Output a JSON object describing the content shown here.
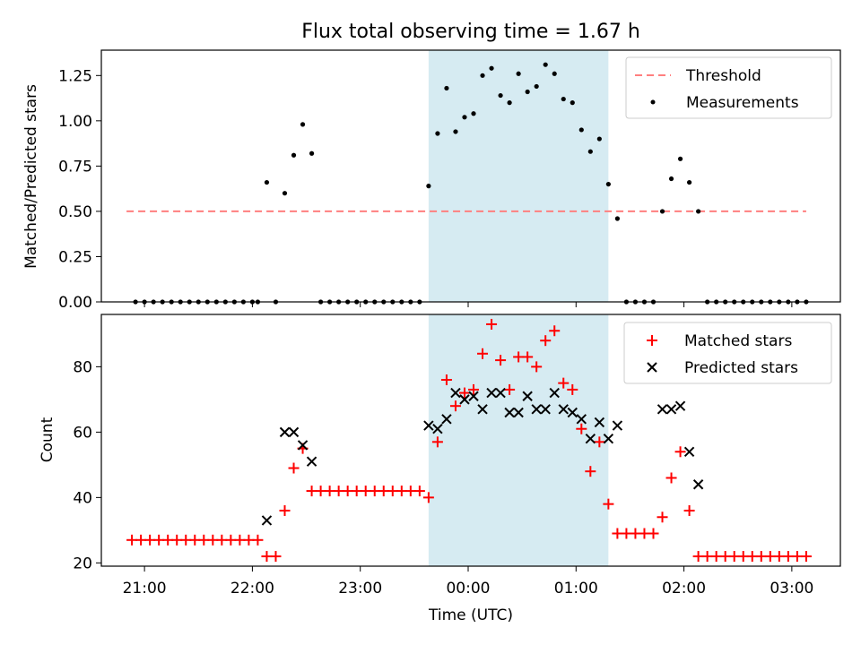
{
  "title": "Flux total observing time = 1.67 h",
  "colors": {
    "threshold": "#ff7f7f",
    "measurement": "#000000",
    "matched": "#ff0000",
    "predicted": "#000000",
    "shade": "#add8e6"
  },
  "chart_data": [
    {
      "type": "scatter",
      "panel": "top",
      "ylabel": "Matched/Predicted stars",
      "ylim": [
        0,
        1.39
      ],
      "yticks": [
        0,
        0.25,
        0.5,
        0.75,
        1.0,
        1.25
      ],
      "ytick_labels": [
        "0.00",
        "0.25",
        "0.50",
        "0.75",
        "1.00",
        "1.25"
      ],
      "legend_position": "top-right",
      "shaded_region": [
        "23:38",
        "01:18"
      ],
      "threshold": {
        "name": "Threshold",
        "value": 0.5,
        "x_range": [
          "20:50",
          "03:08"
        ]
      },
      "series": [
        {
          "name": "Measurements",
          "marker": "dot",
          "points": [
            [
              "20:55",
              0
            ],
            [
              "21:00",
              0
            ],
            [
              "21:05",
              0
            ],
            [
              "21:10",
              0
            ],
            [
              "21:15",
              0
            ],
            [
              "21:20",
              0
            ],
            [
              "21:25",
              0
            ],
            [
              "21:30",
              0
            ],
            [
              "21:35",
              0
            ],
            [
              "21:40",
              0
            ],
            [
              "21:45",
              0
            ],
            [
              "21:50",
              0
            ],
            [
              "21:55",
              0
            ],
            [
              "22:00",
              0
            ],
            [
              "22:03",
              0
            ],
            [
              "22:08",
              0.66
            ],
            [
              "22:13",
              0
            ],
            [
              "22:18",
              0.6
            ],
            [
              "22:23",
              0.81
            ],
            [
              "22:28",
              0.98
            ],
            [
              "22:33",
              0.82
            ],
            [
              "22:38",
              0
            ],
            [
              "22:43",
              0
            ],
            [
              "22:48",
              0
            ],
            [
              "22:53",
              0
            ],
            [
              "22:58",
              0
            ],
            [
              "23:03",
              0
            ],
            [
              "23:08",
              0
            ],
            [
              "23:13",
              0
            ],
            [
              "23:18",
              0
            ],
            [
              "23:23",
              0
            ],
            [
              "23:28",
              0
            ],
            [
              "23:33",
              0
            ],
            [
              "23:38",
              0.64
            ],
            [
              "23:43",
              0.93
            ],
            [
              "23:48",
              1.18
            ],
            [
              "23:53",
              0.94
            ],
            [
              "23:58",
              1.02
            ],
            [
              "00:03",
              1.04
            ],
            [
              "00:08",
              1.25
            ],
            [
              "00:13",
              1.29
            ],
            [
              "00:18",
              1.14
            ],
            [
              "00:23",
              1.1
            ],
            [
              "00:28",
              1.26
            ],
            [
              "00:33",
              1.16
            ],
            [
              "00:38",
              1.19
            ],
            [
              "00:43",
              1.31
            ],
            [
              "00:48",
              1.26
            ],
            [
              "00:53",
              1.12
            ],
            [
              "00:58",
              1.1
            ],
            [
              "01:03",
              0.95
            ],
            [
              "01:08",
              0.83
            ],
            [
              "01:13",
              0.9
            ],
            [
              "01:18",
              0.65
            ],
            [
              "01:23",
              0.46
            ],
            [
              "01:28",
              0
            ],
            [
              "01:33",
              0
            ],
            [
              "01:38",
              0
            ],
            [
              "01:43",
              0
            ],
            [
              "01:48",
              0.5
            ],
            [
              "01:53",
              0.68
            ],
            [
              "01:58",
              0.79
            ],
            [
              "02:03",
              0.66
            ],
            [
              "02:08",
              0.5
            ],
            [
              "02:13",
              0
            ],
            [
              "02:18",
              0
            ],
            [
              "02:23",
              0
            ],
            [
              "02:28",
              0
            ],
            [
              "02:33",
              0
            ],
            [
              "02:38",
              0
            ],
            [
              "02:43",
              0
            ],
            [
              "02:48",
              0
            ],
            [
              "02:53",
              0
            ],
            [
              "02:58",
              0
            ],
            [
              "03:03",
              0
            ],
            [
              "03:08",
              0
            ]
          ]
        }
      ]
    },
    {
      "type": "scatter",
      "panel": "bottom",
      "xlabel": "Time (UTC)",
      "ylabel": "Count",
      "ylim": [
        19,
        96
      ],
      "yticks": [
        20,
        40,
        60,
        80
      ],
      "ytick_labels": [
        "20",
        "40",
        "60",
        "80"
      ],
      "xticks": [
        "21:00",
        "22:00",
        "23:00",
        "00:00",
        "01:00",
        "02:00",
        "03:00"
      ],
      "x_range": [
        "20:36",
        "03:27"
      ],
      "legend_position": "top-right",
      "shaded_region": [
        "23:38",
        "01:18"
      ],
      "series": [
        {
          "name": "Matched stars",
          "marker": "plus",
          "points": [
            [
              "20:53",
              27
            ],
            [
              "20:58",
              27
            ],
            [
              "21:03",
              27
            ],
            [
              "21:08",
              27
            ],
            [
              "21:13",
              27
            ],
            [
              "21:18",
              27
            ],
            [
              "21:23",
              27
            ],
            [
              "21:28",
              27
            ],
            [
              "21:33",
              27
            ],
            [
              "21:38",
              27
            ],
            [
              "21:43",
              27
            ],
            [
              "21:48",
              27
            ],
            [
              "21:53",
              27
            ],
            [
              "21:58",
              27
            ],
            [
              "22:03",
              27
            ],
            [
              "22:08",
              22
            ],
            [
              "22:13",
              22
            ],
            [
              "22:18",
              36
            ],
            [
              "22:23",
              49
            ],
            [
              "22:28",
              55
            ],
            [
              "22:33",
              42
            ],
            [
              "22:38",
              42
            ],
            [
              "22:43",
              42
            ],
            [
              "22:48",
              42
            ],
            [
              "22:53",
              42
            ],
            [
              "22:58",
              42
            ],
            [
              "23:03",
              42
            ],
            [
              "23:08",
              42
            ],
            [
              "23:13",
              42
            ],
            [
              "23:18",
              42
            ],
            [
              "23:23",
              42
            ],
            [
              "23:28",
              42
            ],
            [
              "23:33",
              42
            ],
            [
              "23:38",
              40
            ],
            [
              "23:43",
              57
            ],
            [
              "23:48",
              76
            ],
            [
              "23:53",
              68
            ],
            [
              "23:58",
              72
            ],
            [
              "00:03",
              73
            ],
            [
              "00:08",
              84
            ],
            [
              "00:13",
              93
            ],
            [
              "00:18",
              82
            ],
            [
              "00:23",
              73
            ],
            [
              "00:28",
              83
            ],
            [
              "00:33",
              83
            ],
            [
              "00:38",
              80
            ],
            [
              "00:43",
              88
            ],
            [
              "00:48",
              91
            ],
            [
              "00:53",
              75
            ],
            [
              "00:58",
              73
            ],
            [
              "01:03",
              61
            ],
            [
              "01:08",
              48
            ],
            [
              "01:13",
              57
            ],
            [
              "01:18",
              38
            ],
            [
              "01:23",
              29
            ],
            [
              "01:28",
              29
            ],
            [
              "01:33",
              29
            ],
            [
              "01:38",
              29
            ],
            [
              "01:43",
              29
            ],
            [
              "01:48",
              34
            ],
            [
              "01:53",
              46
            ],
            [
              "01:58",
              54
            ],
            [
              "02:03",
              36
            ],
            [
              "02:08",
              22
            ],
            [
              "02:13",
              22
            ],
            [
              "02:18",
              22
            ],
            [
              "02:23",
              22
            ],
            [
              "02:28",
              22
            ],
            [
              "02:33",
              22
            ],
            [
              "02:38",
              22
            ],
            [
              "02:43",
              22
            ],
            [
              "02:48",
              22
            ],
            [
              "02:53",
              22
            ],
            [
              "02:58",
              22
            ],
            [
              "03:03",
              22
            ],
            [
              "03:08",
              22
            ]
          ]
        },
        {
          "name": "Predicted stars",
          "marker": "x",
          "points": [
            [
              "22:08",
              33
            ],
            [
              "22:18",
              60
            ],
            [
              "22:23",
              60
            ],
            [
              "22:28",
              56
            ],
            [
              "22:33",
              51
            ],
            [
              "23:38",
              62
            ],
            [
              "23:43",
              61
            ],
            [
              "23:48",
              64
            ],
            [
              "23:53",
              72
            ],
            [
              "23:58",
              70
            ],
            [
              "00:03",
              71
            ],
            [
              "00:08",
              67
            ],
            [
              "00:13",
              72
            ],
            [
              "00:18",
              72
            ],
            [
              "00:23",
              66
            ],
            [
              "00:28",
              66
            ],
            [
              "00:33",
              71
            ],
            [
              "00:38",
              67
            ],
            [
              "00:43",
              67
            ],
            [
              "00:48",
              72
            ],
            [
              "00:53",
              67
            ],
            [
              "00:58",
              66
            ],
            [
              "01:03",
              64
            ],
            [
              "01:08",
              58
            ],
            [
              "01:13",
              63
            ],
            [
              "01:18",
              58
            ],
            [
              "01:23",
              62
            ],
            [
              "01:48",
              67
            ],
            [
              "01:53",
              67
            ],
            [
              "01:58",
              68
            ],
            [
              "02:03",
              54
            ],
            [
              "02:08",
              44
            ]
          ]
        }
      ]
    }
  ]
}
